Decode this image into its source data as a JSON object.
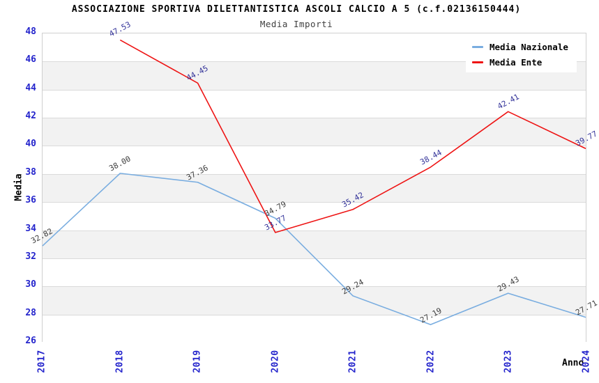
{
  "title": "ASSOCIAZIONE SPORTIVA DILETTANTISTICA ASCOLI CALCIO A 5 (c.f.02136150444)",
  "subtitle": "Media Importi",
  "colors": {
    "tick_label": "#2424cc",
    "grid_line": "#dadada",
    "plot_border": "#cfcfcf",
    "band_gray": "#f2f2f2"
  },
  "chart_data": {
    "type": "line",
    "title": "ASSOCIAZIONE SPORTIVA DILETTANTISTICA ASCOLI CALCIO A 5 (c.f.02136150444)",
    "subtitle": "Media Importi",
    "xlabel": "Anno",
    "ylabel": "Media",
    "categories": [
      "2017",
      "2018",
      "2019",
      "2020",
      "2021",
      "2022",
      "2023",
      "2024"
    ],
    "series": [
      {
        "name": "Media Nazionale",
        "color": "#79ade0",
        "label_color": "#3d3d3d",
        "values": [
          32.82,
          38.0,
          37.36,
          34.79,
          29.24,
          27.19,
          29.43,
          27.71
        ],
        "labels": [
          "32.82",
          "38.00",
          "37.36",
          "34.79",
          "29.24",
          "27.19",
          "29.43",
          "27.71"
        ]
      },
      {
        "name": "Media Ente",
        "color": "#ee1414",
        "label_color": "#333399",
        "values": [
          null,
          47.53,
          44.45,
          33.77,
          35.42,
          38.44,
          42.41,
          39.77
        ],
        "labels": [
          null,
          "47.53",
          "44.45",
          "33.77",
          "35.42",
          "38.44",
          "42.41",
          "39.77"
        ]
      }
    ],
    "ylim": [
      26,
      48
    ],
    "ytick_step": 2,
    "yticks": [
      "26",
      "28",
      "30",
      "32",
      "34",
      "36",
      "38",
      "40",
      "42",
      "44",
      "46",
      "48"
    ],
    "grid": true,
    "band_colors": [
      "#ffffff",
      "#f2f2f2"
    ],
    "legend_position": "top-right"
  },
  "legend": {
    "items": [
      {
        "label": "Media Nazionale"
      },
      {
        "label": "Media Ente"
      }
    ]
  }
}
